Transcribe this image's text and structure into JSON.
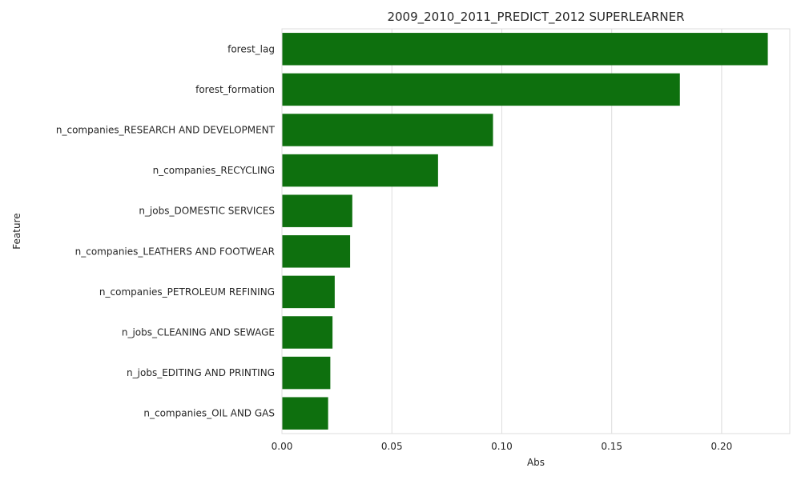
{
  "chart_data": {
    "type": "bar",
    "orientation": "horizontal",
    "title": "2009_2010_2011_PREDICT_2012 SUPERLEARNER",
    "xlabel": "Abs",
    "ylabel": "Feature",
    "categories": [
      "forest_lag",
      "forest_formation",
      "n_companies_RESEARCH AND DEVELOPMENT",
      "n_companies_RECYCLING",
      "n_jobs_DOMESTIC SERVICES",
      "n_companies_LEATHERS AND FOOTWEAR",
      "n_companies_PETROLEUM REFINING",
      "n_jobs_CLEANING AND SEWAGE",
      "n_jobs_EDITING AND PRINTING",
      "n_companies_OIL AND GAS"
    ],
    "values": [
      0.221,
      0.181,
      0.096,
      0.071,
      0.032,
      0.031,
      0.024,
      0.023,
      0.022,
      0.021
    ],
    "xlim": [
      0,
      0.231
    ],
    "xticks": [
      0,
      0.05,
      0.1,
      0.15,
      0.2
    ],
    "xtick_labels": [
      "0.00",
      "0.05",
      "0.10",
      "0.15",
      "0.20"
    ],
    "bar_color": "#0e700e",
    "grid": "vertical"
  }
}
